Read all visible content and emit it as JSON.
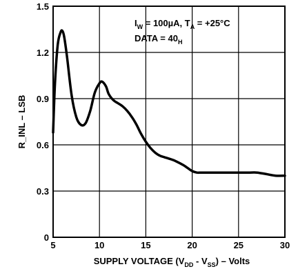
{
  "chart_data": {
    "type": "line",
    "title": "",
    "xlabel_parts": [
      "SUPPLY VOLTAGE (V",
      "DD",
      " - V",
      "SS",
      ") – Volts"
    ],
    "ylabel": "R_INL – LSB",
    "xlim": [
      5,
      30
    ],
    "ylim": [
      0,
      1.5
    ],
    "x_ticks": [
      "5",
      "10",
      "15",
      "20",
      "25",
      "30"
    ],
    "y_ticks": [
      "0",
      "0.3",
      "0.6",
      "0.9",
      "1.2",
      "1.5"
    ],
    "grid": true,
    "annotations": {
      "line1_parts": [
        "I",
        "W",
        " = 100µA, T",
        "A",
        " = +25°C"
      ],
      "line2_parts": [
        "DATA = 40",
        "H"
      ]
    },
    "series": [
      {
        "x": [
          5.0,
          5.2,
          5.5,
          5.8,
          6.0,
          6.2,
          6.5,
          7.0,
          7.5,
          8.0,
          8.5,
          9.0,
          9.5,
          10.0,
          10.3,
          10.7,
          11.0,
          11.5,
          12.0,
          12.5,
          13.0,
          13.5,
          14.0,
          14.5,
          15.0,
          15.5,
          16.0,
          16.5,
          17.0,
          18.0,
          19.0,
          19.5,
          20.0,
          20.5,
          21.0,
          22.0,
          24.0,
          26.0,
          27.0,
          28.0,
          29.0,
          30.0
        ],
        "y": [
          0.68,
          1.0,
          1.25,
          1.33,
          1.34,
          1.3,
          1.17,
          0.92,
          0.78,
          0.73,
          0.74,
          0.82,
          0.94,
          1.0,
          1.01,
          0.98,
          0.93,
          0.89,
          0.87,
          0.85,
          0.82,
          0.78,
          0.73,
          0.67,
          0.62,
          0.58,
          0.55,
          0.53,
          0.52,
          0.5,
          0.47,
          0.45,
          0.43,
          0.42,
          0.42,
          0.42,
          0.42,
          0.42,
          0.42,
          0.41,
          0.4,
          0.4
        ]
      }
    ]
  }
}
